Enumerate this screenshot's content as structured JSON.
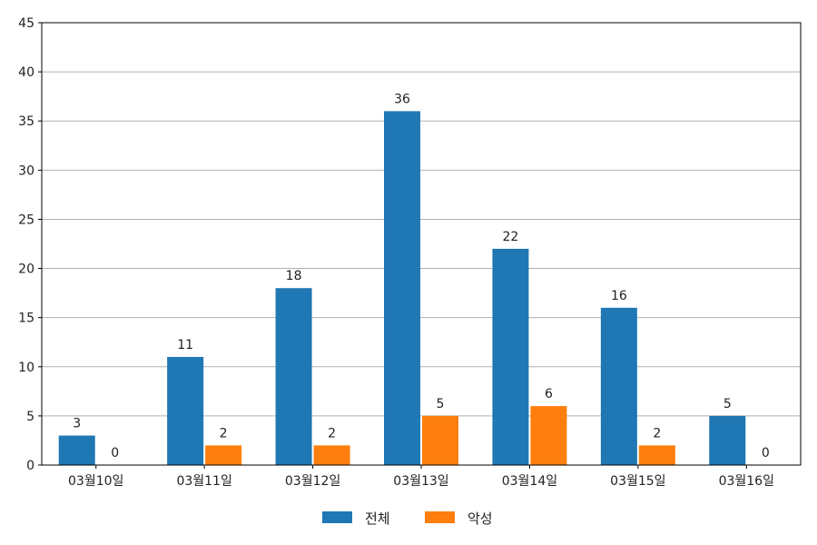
{
  "chart_data": {
    "type": "bar",
    "categories": [
      "03월10일",
      "03월11일",
      "03월12일",
      "03월13일",
      "03월14일",
      "03월15일",
      "03월16일"
    ],
    "series": [
      {
        "name": "전체",
        "values": [
          3,
          11,
          18,
          36,
          22,
          16,
          5
        ],
        "color": "#1f77b4"
      },
      {
        "name": "악성",
        "values": [
          0,
          2,
          2,
          5,
          6,
          2,
          0
        ],
        "color": "#ff7f0e"
      }
    ],
    "title": "",
    "xlabel": "",
    "ylabel": "",
    "ylim": [
      0,
      45
    ],
    "yticks": [
      0,
      5,
      10,
      15,
      20,
      25,
      30,
      35,
      40,
      45
    ],
    "grid": "horizontal",
    "legend_position": "bottom-center",
    "show_data_labels": true
  }
}
